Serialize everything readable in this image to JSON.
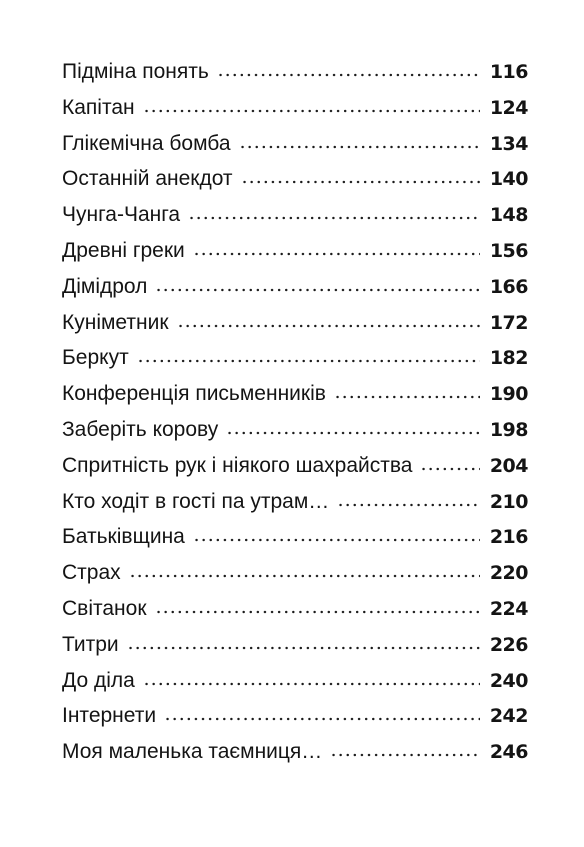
{
  "toc": {
    "entries": [
      {
        "title": "Підміна понять",
        "page": "116"
      },
      {
        "title": "Капітан",
        "page": "124"
      },
      {
        "title": "Глікемічна бомба",
        "page": "134"
      },
      {
        "title": "Останній анекдот",
        "page": "140"
      },
      {
        "title": "Чунга-Чанга",
        "page": "148"
      },
      {
        "title": "Древні греки",
        "page": "156"
      },
      {
        "title": "Дімідрол",
        "page": "166"
      },
      {
        "title": "Куніметник",
        "page": "172"
      },
      {
        "title": "Беркут",
        "page": "182"
      },
      {
        "title": "Конференція письменників",
        "page": "190"
      },
      {
        "title": "Заберіть корову",
        "page": "198"
      },
      {
        "title": "Спритність рук і ніякого шахрайства",
        "page": "204"
      },
      {
        "title": "Кто ходіт в гості па утрам…",
        "page": "210"
      },
      {
        "title": "Батьківщина",
        "page": "216"
      },
      {
        "title": "Страх",
        "page": "220"
      },
      {
        "title": "Світанок",
        "page": "224"
      },
      {
        "title": "Титри",
        "page": "226"
      },
      {
        "title": "До діла",
        "page": "240"
      },
      {
        "title": "Інтернети",
        "page": "242"
      },
      {
        "title": "Моя маленька таємниця…",
        "page": "246"
      }
    ]
  }
}
